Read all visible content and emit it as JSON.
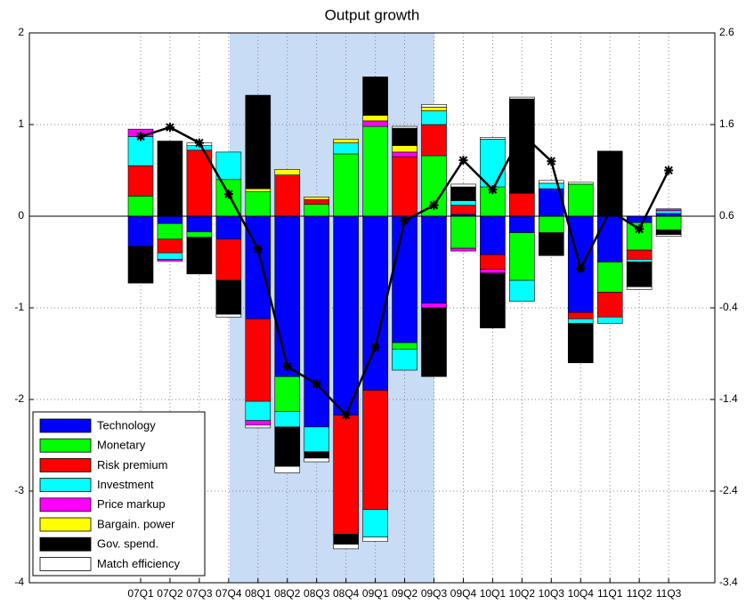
{
  "chart_data": {
    "type": "bar",
    "stacked": true,
    "title": "Output growth",
    "categories": [
      "07Q1",
      "07Q2",
      "07Q3",
      "07Q4",
      "08Q1",
      "08Q2",
      "08Q3",
      "08Q4",
      "09Q1",
      "09Q2",
      "09Q3",
      "09Q4",
      "10Q1",
      "10Q2",
      "10Q3",
      "10Q4",
      "11Q1",
      "11Q2",
      "11Q3"
    ],
    "series": [
      {
        "name": "Technology",
        "color": "#0000ff",
        "values": [
          -0.33,
          -0.08,
          -0.17,
          -0.25,
          -1.12,
          -1.75,
          -2.3,
          -2.17,
          -1.9,
          -1.38,
          -0.95,
          0.02,
          -0.42,
          -0.18,
          0.3,
          -1.05,
          -0.5,
          -0.07,
          0.03
        ]
      },
      {
        "name": "Monetary",
        "color": "#00ff00",
        "values": [
          0.22,
          -0.17,
          -0.06,
          0.4,
          0.27,
          -0.38,
          0.13,
          0.68,
          0.98,
          -0.07,
          0.66,
          -0.35,
          0.32,
          -0.52,
          -0.18,
          0.35,
          -0.33,
          -0.3,
          -0.15
        ]
      },
      {
        "name": "Risk premium",
        "color": "#ff0000",
        "values": [
          0.33,
          -0.15,
          0.72,
          -0.45,
          -0.9,
          0.45,
          0.05,
          -1.3,
          -1.3,
          0.65,
          0.34,
          0.1,
          -0.16,
          0.25,
          0,
          -0.07,
          -0.27,
          -0.1,
          0
        ]
      },
      {
        "name": "Investment",
        "color": "#00ffff",
        "values": [
          0.32,
          -0.07,
          0.05,
          0.3,
          -0.21,
          -0.17,
          -0.27,
          0.12,
          -0.3,
          -0.23,
          0.15,
          0.05,
          0.52,
          -0.23,
          0.06,
          -0.05,
          -0.07,
          -0.03,
          0.03
        ]
      },
      {
        "name": "Price markup",
        "color": "#ff00ff",
        "values": [
          0.08,
          -0.02,
          0,
          0,
          -0.05,
          0,
          0,
          0,
          0.06,
          0.05,
          -0.05,
          -0.03,
          -0.04,
          0,
          0,
          0,
          0,
          0,
          0.02
        ]
      },
      {
        "name": "Bargain. power",
        "color": "#ffff00",
        "values": [
          0,
          0,
          0,
          0,
          0.03,
          0.06,
          0.03,
          0.04,
          0.06,
          0.07,
          0.04,
          0,
          0,
          0,
          0,
          0,
          0,
          0,
          0
        ]
      },
      {
        "name": "Gov. spend.",
        "color": "#000000",
        "values": [
          -0.4,
          0.82,
          -0.4,
          -0.37,
          1.02,
          -0.43,
          -0.07,
          -0.11,
          0.42,
          0.19,
          -0.75,
          0.15,
          -0.6,
          1.03,
          -0.25,
          -0.43,
          0.71,
          -0.27,
          -0.05
        ]
      },
      {
        "name": "Match efficiency",
        "color": "#ffffff",
        "values": [
          0,
          0,
          0.03,
          -0.03,
          -0.03,
          -0.07,
          -0.04,
          -0.05,
          -0.05,
          0.02,
          0.03,
          0.03,
          0.02,
          0.02,
          0.03,
          0.02,
          0,
          -0.03,
          -0.02
        ]
      }
    ],
    "line": {
      "color": "#000000",
      "axis": "y2",
      "values": [
        1.47,
        1.57,
        1.4,
        0.84,
        0.24,
        -1.04,
        -1.23,
        -1.57,
        -0.83,
        0.55,
        0.72,
        1.21,
        0.89,
        1.5,
        1.2,
        0.03,
        0.66,
        0.46,
        1.1
      ]
    },
    "ylim": [
      -4,
      2
    ],
    "yticks": [
      -4,
      -3,
      -2,
      -1,
      0,
      1,
      2
    ],
    "y2lim": [
      -3.4,
      2.6
    ],
    "y2ticks": [
      -3.4,
      -2.4,
      -1.4,
      -0.4,
      0.6,
      1.6,
      2.6
    ],
    "grid": true,
    "legend": "lower left"
  }
}
